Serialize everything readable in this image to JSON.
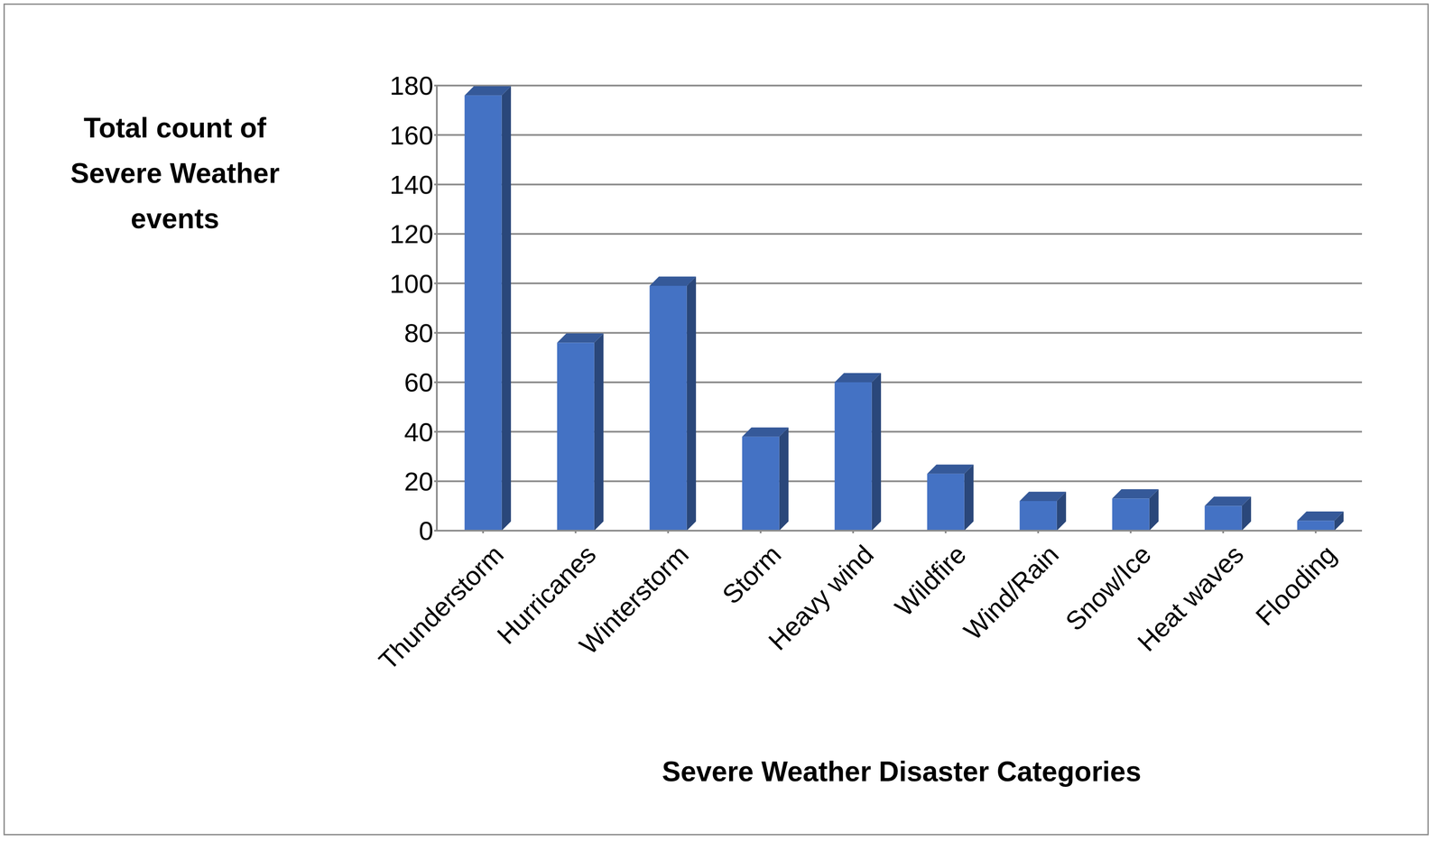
{
  "chart_data": {
    "type": "bar",
    "x_label": "Severe Weather Disaster Categories",
    "y_label": "Total count of Severe Weather events",
    "categories": [
      "Thunderstorm",
      "Hurricanes",
      "Winterstorm",
      "Storm",
      "Heavy wind",
      "Wildfire",
      "Wind/Rain",
      "Snow/Ice",
      "Heat waves",
      "Flooding"
    ],
    "values": [
      176,
      76,
      99,
      38,
      60,
      23,
      12,
      13,
      10,
      4
    ],
    "color": "#4472c4",
    "ylim": [
      0,
      180
    ],
    "yticks": [
      0,
      20,
      40,
      60,
      80,
      100,
      120,
      140,
      160,
      180
    ],
    "grid": true
  }
}
